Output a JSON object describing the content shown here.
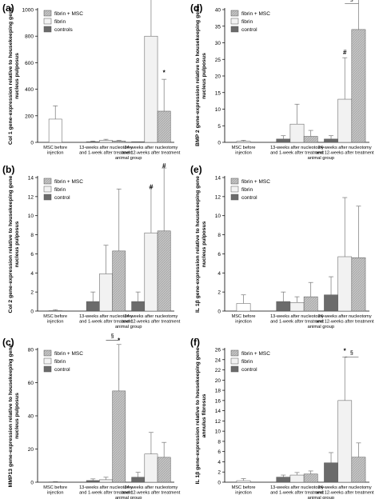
{
  "figure": {
    "background": "#ffffff"
  },
  "colors": {
    "fibrin_msc": "#bdbdbd",
    "fibrin": "#f2f2f2",
    "control": "#6b6b6b",
    "msc_before": "#ffffff",
    "axis": "#000000",
    "error": "#777777"
  },
  "chart_data": [
    {
      "panel": "(a)",
      "type": "bar",
      "ylabel": "Col 1  gene-expression relative to housekeeping gene nucleus pulposus",
      "xlabel": "animal group",
      "ylim": [
        0,
        1000
      ],
      "yticks": [
        0,
        200,
        400,
        600,
        800,
        1000
      ],
      "legend": {
        "position": "top-left",
        "order": [
          "fibrin_msc",
          "fibrin",
          "control"
        ],
        "labels": {
          "fibrin_msc": "fibrin + MSC",
          "fibrin": "fibrin",
          "control": "controls"
        }
      },
      "groups": [
        {
          "label": [
            "MSC before",
            "injection"
          ],
          "bars": [
            {
              "series": "msc_before",
              "value": 175,
              "err": 100
            }
          ]
        },
        {
          "label": [
            "13-weeks after nucleotomy",
            "and 1-week after treatment"
          ],
          "bars": [
            {
              "series": "control",
              "value": 5,
              "err": 5
            },
            {
              "series": "fibrin",
              "value": 15,
              "err": 8
            },
            {
              "series": "fibrin_msc",
              "value": 10,
              "err": 5
            }
          ]
        },
        {
          "label": [
            "24-weeks after nucleotomy",
            "and 12-weeks after treatment"
          ],
          "bars": [
            {
              "series": "control",
              "value": 5,
              "err": 0
            },
            {
              "series": "fibrin",
              "value": 800,
              "err": 385
            },
            {
              "series": "fibrin_msc",
              "value": 235,
              "err": 240
            }
          ]
        }
      ],
      "annotations": [
        {
          "text": "*",
          "group": 2,
          "bar": 1,
          "value": 1230
        },
        {
          "text": "§",
          "group": 2,
          "bar": 1.5,
          "value": 1225,
          "bracket": [
            1,
            2
          ]
        },
        {
          "text": "*",
          "group": 2,
          "bar": 2,
          "value": 510
        }
      ]
    },
    {
      "panel": "(b)",
      "type": "bar",
      "ylabel": "Col 2  gene-expression relative to housekeeping gene nucleus pulposus",
      "xlabel": "animal group",
      "ylim": [
        0,
        14
      ],
      "yticks": [
        0,
        2,
        4,
        6,
        8,
        10,
        12,
        14
      ],
      "legend": {
        "position": "top-left",
        "order": [
          "fibrin_msc",
          "fibrin",
          "control"
        ],
        "labels": {
          "fibrin_msc": "fibrin + MSC",
          "fibrin": "fibrin",
          "control": "control"
        }
      },
      "groups": [
        {
          "label": [
            "MSC before",
            "injection"
          ],
          "bars": [
            {
              "series": "msc_before",
              "value": 0.05,
              "err": 0.1
            }
          ]
        },
        {
          "label": [
            "13-weeks after nucleotomy",
            "and 1-week after treatment"
          ],
          "bars": [
            {
              "series": "control",
              "value": 1.0,
              "err": 1.0
            },
            {
              "series": "fibrin",
              "value": 3.9,
              "err": 3.0
            },
            {
              "series": "fibrin_msc",
              "value": 6.3,
              "err": 6.5
            }
          ]
        },
        {
          "label": [
            "24-weeks after nucleotomy",
            "and 12-weeks after treatment"
          ],
          "bars": [
            {
              "series": "control",
              "value": 1.0,
              "err": 1.0
            },
            {
              "series": "fibrin",
              "value": 8.2,
              "err": 4.8
            },
            {
              "series": "fibrin_msc",
              "value": 8.4,
              "err": 6.6
            }
          ]
        }
      ],
      "annotations": [
        {
          "text": "#",
          "group": 2,
          "bar": 1,
          "value": 12.8
        },
        {
          "text": "#",
          "group": 2,
          "bar": 2,
          "value": 15.0
        }
      ]
    },
    {
      "panel": "(c)",
      "type": "bar",
      "ylabel": "MMP13  gene-expression relative to housekeeping gene nucleus pulposus",
      "xlabel": "animal group",
      "ylim": [
        0,
        80
      ],
      "yticks": [
        0,
        20,
        40,
        60,
        80
      ],
      "legend": {
        "position": "top-left",
        "order": [
          "fibrin_msc",
          "fibrin",
          "control"
        ],
        "labels": {
          "fibrin_msc": "fibrin + MSC",
          "fibrin": "fibrin",
          "control": "control"
        }
      },
      "groups": [
        {
          "label": [
            "MSC before",
            "injection"
          ],
          "bars": [
            {
              "series": "msc_before",
              "value": 0.2,
              "err": 0.2
            }
          ]
        },
        {
          "label": [
            "13-weeks after nucleotomy",
            "and 1-week after treatment"
          ],
          "bars": [
            {
              "series": "control",
              "value": 1.0,
              "err": 1.0
            },
            {
              "series": "fibrin",
              "value": 1.5,
              "err": 1.5
            },
            {
              "series": "fibrin_msc",
              "value": 55.0,
              "err": 28.0
            }
          ]
        },
        {
          "label": [
            "24-weeks after nucleotomy",
            "and 12-weeks after treatment"
          ],
          "bars": [
            {
              "series": "control",
              "value": 3.0,
              "err": 3.0
            },
            {
              "series": "fibrin",
              "value": 17.0,
              "err": 13.0
            },
            {
              "series": "fibrin_msc",
              "value": 15.0,
              "err": 9.0
            }
          ]
        }
      ],
      "annotations": [
        {
          "text": "§",
          "group": 1,
          "bar": 1.5,
          "value": 87,
          "bracket": [
            1,
            2
          ]
        },
        {
          "text": "*",
          "group": 1,
          "bar": 2,
          "value": 84
        }
      ]
    },
    {
      "panel": "(d)",
      "type": "bar",
      "ylabel": "BMP 2  gene-expression relative to housekeeping gene nucleus pulposus",
      "xlabel": "animal group",
      "ylim": [
        0,
        40
      ],
      "yticks": [
        0,
        5,
        10,
        15,
        20,
        25,
        30,
        35,
        40
      ],
      "legend": {
        "position": "top-left",
        "order": [
          "fibrin_msc",
          "fibrin",
          "control"
        ],
        "labels": {
          "fibrin_msc": "fibrin + MSC",
          "fibrin": "fibrin",
          "control": "control"
        }
      },
      "groups": [
        {
          "label": [
            "MSC before",
            "injection"
          ],
          "bars": [
            {
              "series": "msc_before",
              "value": 0.3,
              "err": 0.3
            }
          ]
        },
        {
          "label": [
            "13-weeks after nucleotomy",
            "and 1-week after treatment"
          ],
          "bars": [
            {
              "series": "control",
              "value": 1.0,
              "err": 1.0
            },
            {
              "series": "fibrin",
              "value": 5.5,
              "err": 6.0
            },
            {
              "series": "fibrin_msc",
              "value": 1.8,
              "err": 1.8
            }
          ]
        },
        {
          "label": [
            "24-weeks after nucleotomy",
            "and 12-weeks after treatment"
          ],
          "bars": [
            {
              "series": "control",
              "value": 1.0,
              "err": 1.0
            },
            {
              "series": "fibrin",
              "value": 13.0,
              "err": 12.5
            },
            {
              "series": "fibrin_msc",
              "value": 34.0,
              "err": 9.0
            }
          ]
        }
      ],
      "annotations": [
        {
          "text": "#",
          "group": 2,
          "bar": 1,
          "value": 26.5
        },
        {
          "text": "§",
          "group": 2,
          "bar": 1.5,
          "value": 42.5,
          "bracket": [
            1,
            2
          ]
        },
        {
          "text": "*",
          "group": 2,
          "bar": 2,
          "value": 43.5
        }
      ]
    },
    {
      "panel": "(e)",
      "type": "bar",
      "ylabel": "IL 1β  gene-expression relative to housekeeping gene nucleus pulposus",
      "xlabel": "animal group",
      "ylim": [
        0,
        14
      ],
      "yticks": [
        0,
        2,
        4,
        6,
        8,
        10,
        12,
        14
      ],
      "legend": {
        "position": "top-left",
        "order": [
          "fibrin_msc",
          "fibrin",
          "control"
        ],
        "labels": {
          "fibrin_msc": "fibrin + MSC",
          "fibrin": "fibrin",
          "control": "control"
        }
      },
      "groups": [
        {
          "label": [
            "MSC before",
            "injection"
          ],
          "bars": [
            {
              "series": "msc_before",
              "value": 0.8,
              "err": 0.9
            }
          ]
        },
        {
          "label": [
            "13-weeks after nucleotomy",
            "and 1-week after treatment"
          ],
          "bars": [
            {
              "series": "control",
              "value": 1.0,
              "err": 1.0
            },
            {
              "series": "fibrin",
              "value": 0.9,
              "err": 0.6
            },
            {
              "series": "fibrin_msc",
              "value": 1.5,
              "err": 1.5
            }
          ]
        },
        {
          "label": [
            "24-weeks after nucleotomy",
            "and 12-weeks after treatment"
          ],
          "bars": [
            {
              "series": "control",
              "value": 1.7,
              "err": 1.9
            },
            {
              "series": "fibrin",
              "value": 5.7,
              "err": 6.2
            },
            {
              "series": "fibrin_msc",
              "value": 5.6,
              "err": 5.4
            }
          ]
        }
      ],
      "annotations": []
    },
    {
      "panel": "(f)",
      "type": "bar",
      "ylabel": "IL 1β  gene-expression relative to housekeeping gene annulus fibrosus",
      "xlabel": "animal group",
      "ylim": [
        0,
        26
      ],
      "yticks": [
        0,
        2,
        4,
        6,
        8,
        10,
        12,
        14,
        16,
        18,
        20,
        22,
        24,
        26
      ],
      "legend": {
        "position": "top-left",
        "order": [
          "fibrin_msc",
          "fibrin",
          "control"
        ],
        "labels": {
          "fibrin_msc": "fibrin + MSC",
          "fibrin": "fibrin",
          "control": "control"
        }
      },
      "groups": [
        {
          "label": [
            "MSC before",
            "injection"
          ],
          "bars": [
            {
              "series": "msc_before",
              "value": 0.3,
              "err": 0.4
            }
          ]
        },
        {
          "label": [
            "13-weeks after nucleotomy",
            "and 1-week after treatment"
          ],
          "bars": [
            {
              "series": "control",
              "value": 1.0,
              "err": 0.4
            },
            {
              "series": "fibrin",
              "value": 1.4,
              "err": 0.5
            },
            {
              "series": "fibrin_msc",
              "value": 1.6,
              "err": 0.6
            }
          ]
        },
        {
          "label": [
            "24-weeks after nucleotomy",
            "and 12-weeks after treatment"
          ],
          "bars": [
            {
              "series": "control",
              "value": 3.8,
              "err": 2.0
            },
            {
              "series": "fibrin",
              "value": 16.0,
              "err": 8.5
            },
            {
              "series": "fibrin_msc",
              "value": 4.9,
              "err": 2.8
            }
          ]
        }
      ],
      "annotations": [
        {
          "text": "*",
          "group": 2,
          "bar": 1,
          "value": 25.3
        },
        {
          "text": "§",
          "group": 2,
          "bar": 1.5,
          "value": 25.0,
          "bracket": [
            1,
            2
          ]
        }
      ]
    }
  ]
}
